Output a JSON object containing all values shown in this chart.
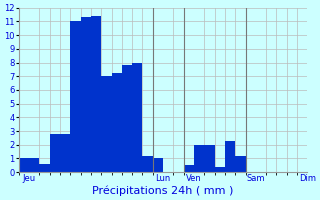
{
  "values": [
    1,
    1,
    0.6,
    2.8,
    2.8,
    11,
    11.3,
    11.4,
    7,
    7.2,
    7.8,
    8,
    1.2,
    1,
    0,
    0,
    0.5,
    2,
    2,
    0.4,
    2.3,
    1.2,
    0,
    0,
    0,
    0,
    0,
    0
  ],
  "n_bars": 28,
  "xlabel": "Précipitations 24h ( mm )",
  "xlabel_color": "#0000dd",
  "xlabel_fontsize": 8,
  "bar_color": "#0033cc",
  "background_color": "#ccffff",
  "grid_color": "#bbbbbb",
  "tick_label_color": "#0000dd",
  "ylim": [
    0,
    12
  ],
  "yticks": [
    0,
    1,
    2,
    3,
    4,
    5,
    6,
    7,
    8,
    9,
    10,
    11,
    12
  ],
  "day_labels": [
    "Jeu",
    "Lun",
    "Ven",
    "Sam",
    "Dim"
  ],
  "day_tick_positions": [
    0.5,
    13.5,
    16.5,
    22.5,
    27.5
  ],
  "vline_positions": [
    12.5,
    15.5,
    21.5
  ],
  "xlim": [
    -0.5,
    27.5
  ]
}
